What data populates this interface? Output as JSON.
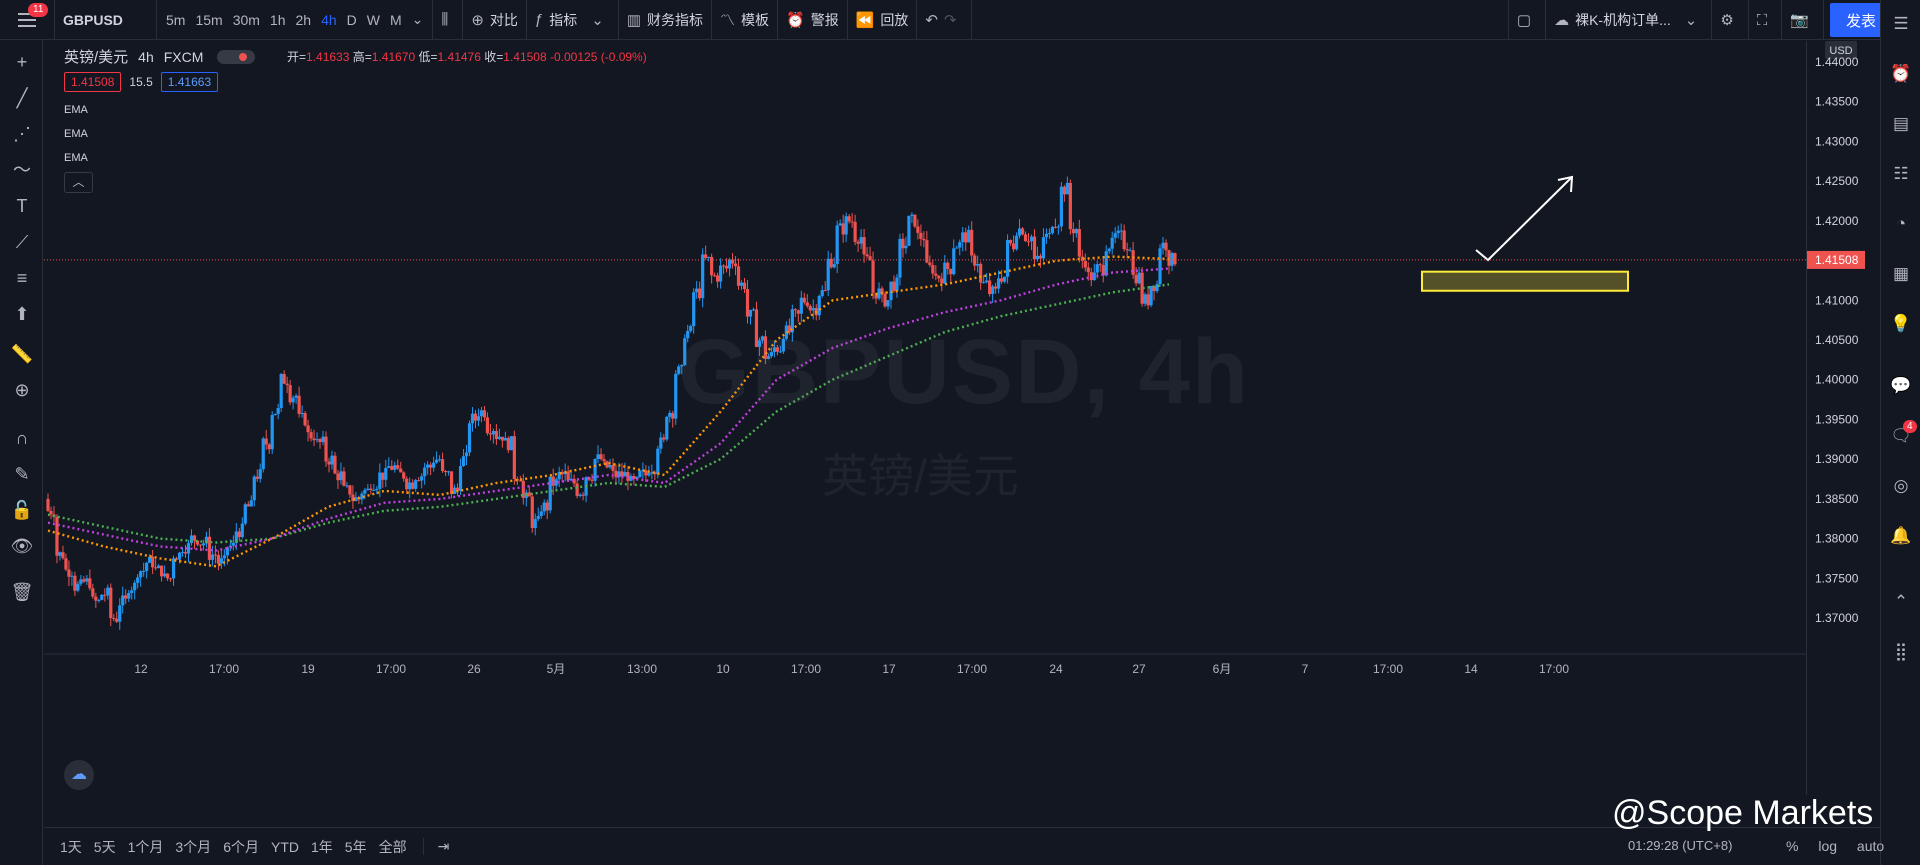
{
  "topbar": {
    "menu_badge": "11",
    "symbol": "GBPUSD",
    "timeframes": [
      "5m",
      "15m",
      "30m",
      "1h",
      "2h",
      "4h",
      "D",
      "W",
      "M"
    ],
    "active_tf": "4h",
    "compare": "对比",
    "indicators": "指标",
    "financials": "财务指标",
    "templates": "模板",
    "alert": "警报",
    "replay": "回放",
    "layout_name": "裸K-机构订单...",
    "publish": "发表"
  },
  "legend": {
    "name": "英镑/美元",
    "interval": "4h",
    "source": "FXCM",
    "open_label": "开=",
    "open": "1.41633",
    "high_label": "高=",
    "high": "1.41670",
    "low_label": "低=",
    "low": "1.41476",
    "close_label": "收=",
    "close": "1.41508",
    "change": "-0.00125 (-0.09%)",
    "bid": "1.41508",
    "spread": "15.5",
    "ask": "1.41663",
    "ema": [
      "EMA",
      "EMA",
      "EMA"
    ],
    "collapse_icon": "chevron-up-icon"
  },
  "watermark": {
    "symbol": "GBPUSD, 4h",
    "name": "英镑/美元"
  },
  "colors": {
    "up": "#2196f3",
    "down": "#ef5350",
    "ema_fast": "#ff9800",
    "ema_mid": "#c040e0",
    "ema_slow": "#4caf50",
    "zone": "#ffeb3b",
    "arrow": "#ffffff"
  },
  "price_axis": {
    "currency": "USD",
    "current_price": "1.41508",
    "ticks": [
      "1.44000",
      "1.43500",
      "1.43000",
      "1.42500",
      "1.42000",
      "1.41500",
      "1.41000",
      "1.40500",
      "1.40000",
      "1.39500",
      "1.39000",
      "1.38500",
      "1.38000",
      "1.37500",
      "1.37000"
    ]
  },
  "time_axis": {
    "ticks": [
      "12",
      "17:00",
      "19",
      "17:00",
      "26",
      "5月",
      "13:00",
      "10",
      "17:00",
      "17",
      "17:00",
      "24",
      "27",
      "6月",
      "7",
      "17:00",
      "14",
      "17:00"
    ]
  },
  "bottombar": {
    "ranges": [
      "1天",
      "5天",
      "1个月",
      "3个月",
      "6个月",
      "YTD",
      "1年",
      "5年",
      "全部"
    ],
    "clock": "01:29:28 (UTC+8)",
    "modes": [
      "%",
      "log",
      "auto"
    ]
  },
  "branding": "@Scope Markets",
  "right_badge": "4",
  "chart_data": {
    "type": "candlestick",
    "symbol": "GBPUSD",
    "interval": "4h",
    "ylim": [
      1.366,
      1.445
    ],
    "close_path": [
      1.3835,
      1.378,
      1.376,
      1.374,
      1.3745,
      1.372,
      1.373,
      1.37,
      1.372,
      1.374,
      1.376,
      1.377,
      1.376,
      1.375,
      1.378,
      1.379,
      1.38,
      1.3795,
      1.378,
      1.377,
      1.379,
      1.381,
      1.384,
      1.388,
      1.392,
      1.396,
      1.4,
      1.398,
      1.395,
      1.393,
      1.392,
      1.39,
      1.388,
      1.386,
      1.385,
      1.386,
      1.387,
      1.388,
      1.389,
      1.388,
      1.387,
      1.388,
      1.389,
      1.39,
      1.388,
      1.386,
      1.39,
      1.395,
      1.396,
      1.394,
      1.393,
      1.392,
      1.388,
      1.385,
      1.382,
      1.384,
      1.387,
      1.388,
      1.387,
      1.386,
      1.388,
      1.39,
      1.389,
      1.388,
      1.388,
      1.387,
      1.388,
      1.389,
      1.392,
      1.396,
      1.401,
      1.406,
      1.411,
      1.415,
      1.413,
      1.414,
      1.415,
      1.412,
      1.408,
      1.405,
      1.403,
      1.404,
      1.406,
      1.408,
      1.41,
      1.409,
      1.411,
      1.415,
      1.419,
      1.42,
      1.418,
      1.415,
      1.411,
      1.41,
      1.412,
      1.417,
      1.42,
      1.418,
      1.414,
      1.413,
      1.414,
      1.417,
      1.418,
      1.415,
      1.412,
      1.411,
      1.413,
      1.417,
      1.419,
      1.418,
      1.415,
      1.418,
      1.42,
      1.424,
      1.419,
      1.415,
      1.413,
      1.414,
      1.417,
      1.418,
      1.417,
      1.413,
      1.41,
      1.412,
      1.417,
      1.4151
    ],
    "ema_fast": [
      1.381,
      1.379,
      1.3775,
      1.3765,
      1.38,
      1.384,
      1.386,
      1.3855,
      1.387,
      1.388,
      1.3895,
      1.388,
      1.396,
      1.405,
      1.41,
      1.411,
      1.412,
      1.4135,
      1.415,
      1.4155,
      1.4152
    ],
    "ema_mid": [
      1.382,
      1.3805,
      1.379,
      1.3785,
      1.38,
      1.3825,
      1.3845,
      1.385,
      1.386,
      1.387,
      1.388,
      1.387,
      1.392,
      1.4,
      1.404,
      1.4065,
      1.4085,
      1.41,
      1.412,
      1.4135,
      1.414
    ],
    "ema_slow": [
      1.383,
      1.3815,
      1.38,
      1.3795,
      1.38,
      1.382,
      1.3835,
      1.384,
      1.385,
      1.386,
      1.387,
      1.3865,
      1.39,
      1.396,
      1.4,
      1.403,
      1.406,
      1.408,
      1.4095,
      1.411,
      1.412
    ],
    "zone": {
      "top": 1.4136,
      "bottom": 1.4112
    },
    "current_line": 1.41508
  }
}
